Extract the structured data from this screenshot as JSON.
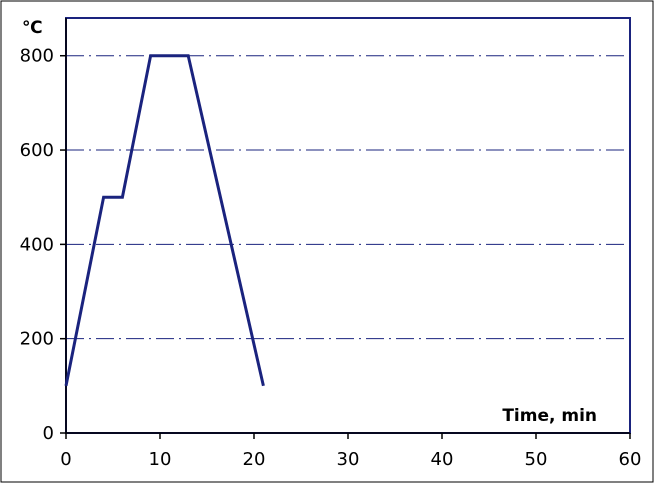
{
  "chart_data": {
    "type": "line",
    "title": "",
    "xlabel": "Time, min",
    "ylabel": "℃",
    "xlim": [
      0,
      60
    ],
    "ylim": [
      0,
      880
    ],
    "x_ticks": [
      0,
      10,
      20,
      30,
      40,
      50,
      60
    ],
    "y_ticks": [
      0,
      200,
      400,
      600,
      800
    ],
    "grid": {
      "horizontal": true,
      "style": "dash-dot",
      "vertical": false
    },
    "legend": "none",
    "series": [
      {
        "color": "#1a237e",
        "x": [
          0,
          4,
          6,
          9,
          13,
          21
        ],
        "y": [
          100,
          500,
          500,
          800,
          800,
          100
        ]
      }
    ]
  },
  "colors": {
    "plot_border": "#1a237e",
    "grid": "#1a237e",
    "axis": "#000000"
  }
}
